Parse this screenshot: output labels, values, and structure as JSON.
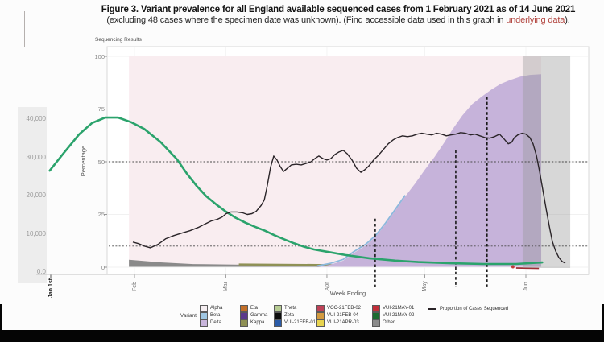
{
  "title": {
    "line1": "Figure 3. Variant prevalence for all England available sequenced cases from 1 February 2021 as of 14 June 2021",
    "line2_prefix": "(excluding 48 cases where the specimen date was unknown). (Find accessible data used in this graph in ",
    "link_text": "underlying data",
    "line2_suffix": ")."
  },
  "panel_title": "Sequencing Results",
  "axes": {
    "percentage_label": "Percentage",
    "pct_ticks": [
      "100",
      "75",
      "50",
      "25",
      "0"
    ],
    "cases_ticks": [
      "40,000",
      "30,000",
      "20,000",
      "10,000",
      "0.0"
    ],
    "jan_label": "Jan 1st",
    "month_ticks": [
      "Feb",
      "Mar",
      "Apr",
      "May",
      "Jun"
    ],
    "x_label": "Week Ending"
  },
  "legend": {
    "title": "Variant",
    "items": [
      {
        "label": "Alpha",
        "color": "#f5eef1"
      },
      {
        "label": "Beta",
        "color": "#9fc7e3"
      },
      {
        "label": "Delta",
        "color": "#c9b6dc"
      },
      {
        "label": "Eta",
        "color": "#c26f28"
      },
      {
        "label": "Gamma",
        "color": "#5b3a8c"
      },
      {
        "label": "Kappa",
        "color": "#8f9155"
      },
      {
        "label": "Theta",
        "color": "#b7cc93"
      },
      {
        "label": "Zeta",
        "color": "#0d0d0d"
      },
      {
        "label": "VUI-21FEB-01",
        "color": "#2b5ca8"
      },
      {
        "label": "VOC-21FEB-02",
        "color": "#bf4258"
      },
      {
        "label": "VUI-21FEB-04",
        "color": "#d39a3f"
      },
      {
        "label": "VUI-21APR-03",
        "color": "#e8d44f"
      },
      {
        "label": "VUI-21MAY-01",
        "color": "#c22f39"
      },
      {
        "label": "VUI-21MAY-02",
        "color": "#1d6b30"
      },
      {
        "label": "Other",
        "color": "#8c8c8c"
      }
    ],
    "line_label": "Proportion of Cases Sequenced",
    "line_color": "#2a2428"
  },
  "chart_data": {
    "type": "area+line",
    "title": "Sequencing Results",
    "x_axis": {
      "label": "Week Ending",
      "ticks": [
        "Feb",
        "Mar",
        "Apr",
        "May",
        "Jun"
      ],
      "unit": "days since 1 Feb 2021"
    },
    "month_tick_days": [
      0,
      28,
      59,
      89,
      120
    ],
    "percentage_axis": {
      "label": "Percentage",
      "range": [
        0,
        100
      ],
      "ticks": [
        0,
        25,
        50,
        75,
        100
      ]
    },
    "cases_axis": {
      "range": [
        0,
        40000
      ],
      "ticks": [
        40000,
        30000,
        20000,
        10000,
        0
      ]
    },
    "colors": {
      "alpha_area": "#f9edf0",
      "delta_area": "#c6b3da",
      "other_area": "#8a8a8a",
      "kappa": "#8f9155",
      "beta_edge": "#8cb8dd",
      "green_line": "#2ba36c",
      "sequenced_line": "#2a2428",
      "red_strip": "#9e2d35",
      "recent_band": "rgba(150,150,150,0.38)"
    },
    "series": [
      {
        "name": "Proportion of Cases Sequenced",
        "type": "line",
        "unit": "%",
        "points": [
          [
            -0.5,
            11.9
          ],
          [
            1.2,
            11.2
          ],
          [
            3,
            10
          ],
          [
            4.9,
            9.2
          ],
          [
            7.2,
            10.8
          ],
          [
            9.6,
            13.5
          ],
          [
            12.1,
            15
          ],
          [
            14.6,
            16.2
          ],
          [
            17,
            17.3
          ],
          [
            19.5,
            18.8
          ],
          [
            21.5,
            20.4
          ],
          [
            23.5,
            21.9
          ],
          [
            25.4,
            22.7
          ],
          [
            26.9,
            23.8
          ],
          [
            28.1,
            25.4
          ],
          [
            29.6,
            26.2
          ],
          [
            31.4,
            26.2
          ],
          [
            33.1,
            25.8
          ],
          [
            34.6,
            25
          ],
          [
            36,
            25.4
          ],
          [
            37.3,
            26.5
          ],
          [
            38.8,
            29.2
          ],
          [
            39.8,
            31.9
          ],
          [
            40.7,
            38.5
          ],
          [
            41.7,
            47.3
          ],
          [
            42.7,
            52.7
          ],
          [
            43.7,
            50.8
          ],
          [
            44.7,
            47.7
          ],
          [
            45.7,
            45.4
          ],
          [
            46.9,
            46.9
          ],
          [
            48.1,
            48.5
          ],
          [
            49.6,
            48.8
          ],
          [
            51.1,
            48.5
          ],
          [
            52.6,
            49.2
          ],
          [
            54.1,
            50
          ],
          [
            55.3,
            51.5
          ],
          [
            56.5,
            52.7
          ],
          [
            57.8,
            51.5
          ],
          [
            59,
            50.8
          ],
          [
            60.2,
            51.5
          ],
          [
            61.5,
            53.5
          ],
          [
            62.7,
            54.6
          ],
          [
            64,
            55.4
          ],
          [
            65.2,
            53.8
          ],
          [
            66.7,
            50.8
          ],
          [
            68.1,
            46.9
          ],
          [
            69.4,
            45
          ],
          [
            70.6,
            46.2
          ],
          [
            71.9,
            48.1
          ],
          [
            73.3,
            50.8
          ],
          [
            74.8,
            53.1
          ],
          [
            76.3,
            55.8
          ],
          [
            77.8,
            58.5
          ],
          [
            79.3,
            60.4
          ],
          [
            80.7,
            61.5
          ],
          [
            82.2,
            62.3
          ],
          [
            83.7,
            61.9
          ],
          [
            85.2,
            62.3
          ],
          [
            86.7,
            63.1
          ],
          [
            88.1,
            63.5
          ],
          [
            89.6,
            63.1
          ],
          [
            91.1,
            62.7
          ],
          [
            92.6,
            63.5
          ],
          [
            94.1,
            63.1
          ],
          [
            95.6,
            62.3
          ],
          [
            97,
            62.7
          ],
          [
            98.5,
            63.1
          ],
          [
            100,
            63.8
          ],
          [
            101.5,
            63.5
          ],
          [
            103,
            62.7
          ],
          [
            104.4,
            63.1
          ],
          [
            105.9,
            62.3
          ],
          [
            107.4,
            61.5
          ],
          [
            108.9,
            61.2
          ],
          [
            110.4,
            61.9
          ],
          [
            111.9,
            63.1
          ],
          [
            113.3,
            60.8
          ],
          [
            114.6,
            58.5
          ],
          [
            115.6,
            59.2
          ],
          [
            116.5,
            61.5
          ],
          [
            117.5,
            62.7
          ],
          [
            118.8,
            63.5
          ],
          [
            120,
            63.1
          ],
          [
            121.2,
            61.5
          ],
          [
            122.2,
            58.5
          ],
          [
            123.2,
            53.1
          ],
          [
            124.2,
            45.4
          ],
          [
            125.2,
            36.5
          ],
          [
            126.2,
            27.7
          ],
          [
            127.2,
            19.2
          ],
          [
            128.1,
            12.3
          ],
          [
            129.1,
            7.7
          ],
          [
            130.1,
            4.6
          ],
          [
            131.1,
            2.7
          ],
          [
            132.1,
            1.9
          ]
        ]
      },
      {
        "name": "Cases (left axis, green)",
        "type": "line",
        "unit": "cases",
        "points": [
          [
            -26,
            26500
          ],
          [
            -22,
            30800
          ],
          [
            -17,
            36000
          ],
          [
            -13,
            39000
          ],
          [
            -9,
            40400
          ],
          [
            -5,
            40400
          ],
          [
            -1,
            39200
          ],
          [
            3,
            37400
          ],
          [
            8,
            34000
          ],
          [
            13,
            29500
          ],
          [
            16,
            25800
          ],
          [
            19,
            22600
          ],
          [
            22,
            19800
          ],
          [
            25,
            17700
          ],
          [
            28,
            15800
          ],
          [
            31,
            14200
          ],
          [
            34,
            12900
          ],
          [
            37,
            11800
          ],
          [
            40,
            10800
          ],
          [
            43,
            9600
          ],
          [
            46,
            8500
          ],
          [
            49,
            7500
          ],
          [
            52,
            6600
          ],
          [
            55,
            5900
          ],
          [
            59,
            5300
          ],
          [
            65,
            4400
          ],
          [
            72,
            3600
          ],
          [
            80,
            3000
          ],
          [
            87,
            2600
          ],
          [
            97,
            2300
          ],
          [
            107,
            2100
          ],
          [
            117,
            2100
          ],
          [
            125,
            2500
          ]
        ]
      },
      {
        "name": "Delta share",
        "type": "area",
        "unit": "%",
        "points": [
          [
            56,
            0
          ],
          [
            60,
            1.2
          ],
          [
            64,
            3.1
          ],
          [
            67,
            6.5
          ],
          [
            71,
            10.4
          ],
          [
            74,
            14.6
          ],
          [
            77,
            20.4
          ],
          [
            80,
            26.9
          ],
          [
            83,
            33.5
          ],
          [
            86,
            39.6
          ],
          [
            89,
            46.2
          ],
          [
            92,
            52.3
          ],
          [
            95,
            59.2
          ],
          [
            97.5,
            65.4
          ],
          [
            100.5,
            71.9
          ],
          [
            103.5,
            77.3
          ],
          [
            106.4,
            80.8
          ],
          [
            109.4,
            84.2
          ],
          [
            112.3,
            86.9
          ],
          [
            115.3,
            88.8
          ],
          [
            118.3,
            90.4
          ],
          [
            121.2,
            91.2
          ],
          [
            124.7,
            91.5
          ]
        ]
      },
      {
        "name": "Other share",
        "type": "area",
        "unit": "%",
        "points": [
          [
            -1.7,
            3.5
          ],
          [
            8,
            2.3
          ],
          [
            18,
            1.5
          ],
          [
            33,
            1.2
          ],
          [
            48,
            0.8
          ],
          [
            62,
            0.5
          ],
          [
            75,
            0.2
          ]
        ]
      },
      {
        "name": "Kappa share",
        "type": "area",
        "unit": "%",
        "points": [
          [
            32,
            1.3
          ],
          [
            45,
            1.2
          ],
          [
            62,
            1.0
          ]
        ]
      },
      {
        "name": "Alpha share",
        "type": "area",
        "unit": "%",
        "note": "remainder of stack up to 100%",
        "points": [
          [
            -1.7,
            100
          ],
          [
            124.7,
            100
          ]
        ]
      },
      {
        "name": "VUI-21MAY-01 strip",
        "type": "area",
        "unit": "%",
        "points": [
          [
            117,
            0.3
          ],
          [
            124,
            0.3
          ]
        ]
      }
    ],
    "annotations": {
      "dashed_h_pct": [
        75,
        50,
        10
      ],
      "dashed_v": [
        {
          "day": 73.8,
          "top_pct": 23
        },
        {
          "day": 98.5,
          "top_pct": 55.5
        },
        {
          "day": 108.1,
          "top_pct": 80.8
        }
      ],
      "recent_data_band_days": [
        119,
        133.6
      ]
    }
  }
}
